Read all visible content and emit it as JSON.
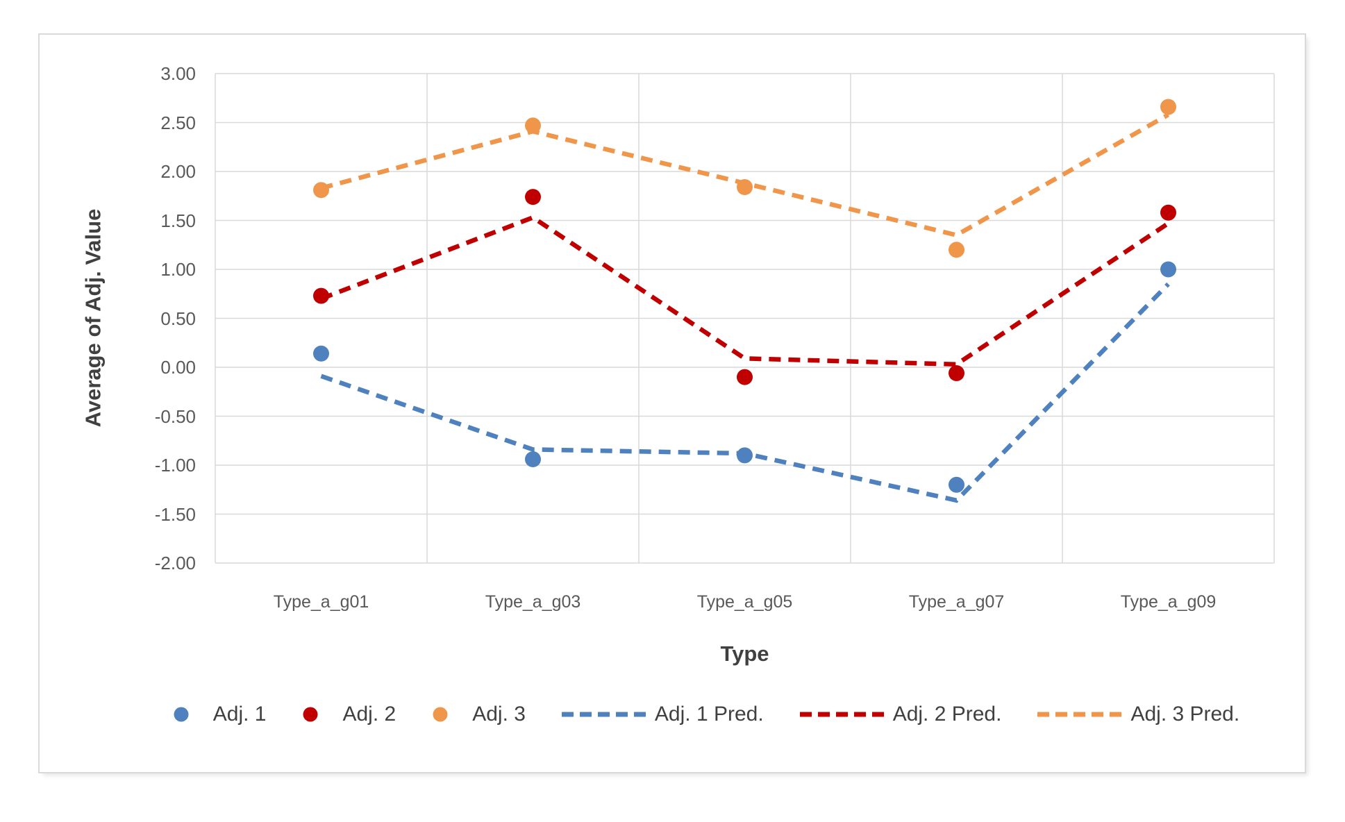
{
  "chart_data": {
    "type": "scatter",
    "categories": [
      "Type_a_g01",
      "Type_a_g03",
      "Type_a_g05",
      "Type_a_g07",
      "Type_a_g09"
    ],
    "series": [
      {
        "name": "Adj. 1",
        "marker": "dot",
        "color": "#4E81BD",
        "values": [
          0.14,
          -0.94,
          -0.9,
          -1.2,
          1.0
        ]
      },
      {
        "name": "Adj. 2",
        "marker": "dot",
        "color": "#C00000",
        "values": [
          0.73,
          1.74,
          -0.1,
          -0.06,
          1.58
        ]
      },
      {
        "name": "Adj. 3",
        "marker": "dot",
        "color": "#F0964B",
        "values": [
          1.81,
          2.47,
          1.84,
          1.2,
          2.66
        ]
      },
      {
        "name": "Adj. 1 Pred.",
        "marker": "dashed-line",
        "color": "#4E81BD",
        "values": [
          -0.09,
          -0.84,
          -0.88,
          -1.36,
          0.85
        ]
      },
      {
        "name": "Adj. 2 Pred.",
        "marker": "dashed-line",
        "color": "#C00000",
        "values": [
          0.7,
          1.53,
          0.09,
          0.03,
          1.47
        ]
      },
      {
        "name": "Adj. 3 Pred.",
        "marker": "dashed-line",
        "color": "#F0964B",
        "values": [
          1.83,
          2.41,
          1.88,
          1.35,
          2.58
        ]
      }
    ],
    "title": "",
    "xlabel": "Type",
    "ylabel": "Average of Adj. Value",
    "ylim": [
      -2.0,
      3.0
    ],
    "ytick_step": 0.5,
    "ytick_labels": [
      "3.00",
      "2.50",
      "2.00",
      "1.50",
      "1.00",
      "0.50",
      "0.00",
      "-0.50",
      "-1.00",
      "-1.50",
      "-2.00"
    ],
    "grid": true,
    "gridline_color": "#D9D9D9",
    "legend_position": "bottom"
  }
}
